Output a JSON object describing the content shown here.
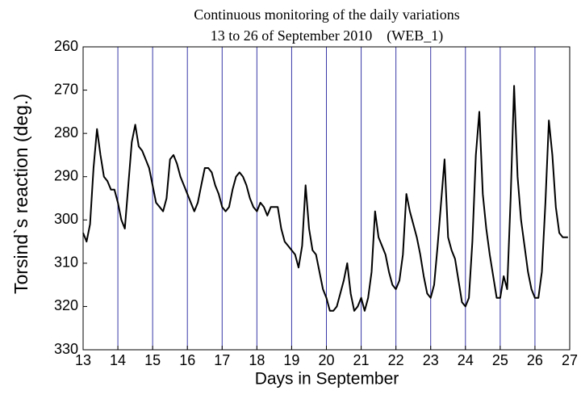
{
  "chart_data": {
    "type": "line",
    "title": "Continuous monitoring of the daily variations",
    "subtitle": "13 to 26 of September 2010    (WEB_1)",
    "x_label": "Days in September",
    "y_label": "Torsind`s reaction (deg.)",
    "color": "#000000",
    "grid_color": "#3838a8",
    "grid": true,
    "xlim": [
      13,
      27
    ],
    "xticks": [
      13,
      14,
      15,
      16,
      17,
      18,
      19,
      20,
      21,
      22,
      23,
      24,
      25,
      26,
      27
    ],
    "ylim": [
      330,
      260
    ],
    "yticks": [
      260,
      270,
      280,
      290,
      300,
      310,
      320,
      330
    ],
    "x": [
      13,
      13.1,
      13.2,
      13.3,
      13.4,
      13.5,
      13.6,
      13.7,
      13.8,
      13.9,
      14,
      14.1,
      14.2,
      14.3,
      14.4,
      14.5,
      14.6,
      14.7,
      14.8,
      14.9,
      15,
      15.1,
      15.2,
      15.3,
      15.4,
      15.5,
      15.6,
      15.7,
      15.8,
      15.9,
      16,
      16.1,
      16.2,
      16.3,
      16.4,
      16.5,
      16.6,
      16.7,
      16.8,
      16.9,
      17,
      17.1,
      17.2,
      17.3,
      17.4,
      17.5,
      17.6,
      17.7,
      17.8,
      17.9,
      18,
      18.1,
      18.2,
      18.3,
      18.4,
      18.5,
      18.6,
      18.7,
      18.8,
      18.9,
      19,
      19.1,
      19.2,
      19.3,
      19.4,
      19.5,
      19.6,
      19.7,
      19.8,
      19.9,
      20,
      20.1,
      20.2,
      20.3,
      20.4,
      20.5,
      20.6,
      20.7,
      20.8,
      20.9,
      21,
      21.1,
      21.2,
      21.3,
      21.4,
      21.5,
      21.6,
      21.7,
      21.8,
      21.9,
      22,
      22.1,
      22.2,
      22.3,
      22.4,
      22.5,
      22.6,
      22.7,
      22.8,
      22.9,
      23,
      23.1,
      23.2,
      23.3,
      23.4,
      23.5,
      23.6,
      23.7,
      23.8,
      23.9,
      24,
      24.1,
      24.2,
      24.3,
      24.4,
      24.5,
      24.6,
      24.7,
      24.8,
      24.9,
      25,
      25.1,
      25.2,
      25.3,
      25.4,
      25.5,
      25.6,
      25.7,
      25.8,
      25.9,
      26,
      26.1,
      26.2,
      26.3,
      26.4,
      26.5,
      26.6,
      26.7,
      26.8,
      26.95
    ],
    "values": [
      303,
      305,
      301,
      288,
      279,
      285,
      290,
      291,
      293,
      293,
      296,
      300,
      302,
      292,
      282,
      278,
      283,
      284,
      286,
      288,
      292,
      296,
      297,
      298,
      295,
      286,
      285,
      287,
      290,
      292,
      294,
      296,
      298,
      296,
      292,
      288,
      288,
      289,
      292,
      294,
      297,
      298,
      297,
      293,
      290,
      289,
      290,
      292,
      295,
      297,
      298,
      296,
      297,
      299,
      297,
      297,
      297,
      302,
      305,
      306,
      307,
      308,
      311,
      306,
      292,
      302,
      307,
      308,
      312,
      316,
      318,
      321,
      321,
      320,
      317,
      314,
      310,
      317,
      321,
      320,
      318,
      321,
      318,
      312,
      298,
      304,
      306,
      308,
      312,
      315,
      316,
      314,
      308,
      294,
      298,
      301,
      304,
      308,
      313,
      317,
      318,
      315,
      306,
      296,
      286,
      304,
      307,
      309,
      314,
      319,
      320,
      318,
      305,
      285,
      275,
      294,
      302,
      308,
      313,
      318,
      318,
      313,
      316,
      295,
      269,
      290,
      300,
      306,
      312,
      316,
      318,
      318,
      312,
      296,
      277,
      285,
      297,
      303,
      304,
      304
    ]
  }
}
